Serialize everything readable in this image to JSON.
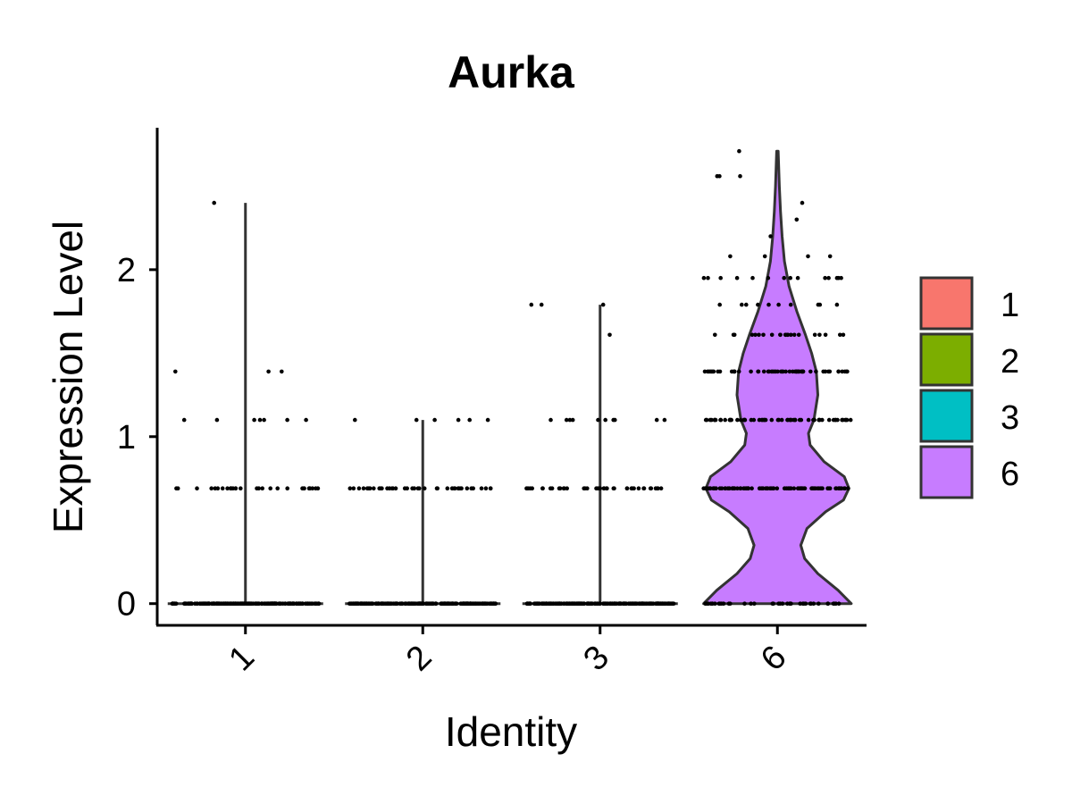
{
  "chart_data": {
    "type": "violin",
    "title": "Aurka",
    "xlabel": "Identity",
    "ylabel": "Expression Level",
    "categories": [
      "1",
      "2",
      "3",
      "6"
    ],
    "ylim": [
      -0.13,
      2.85
    ],
    "yticks": [
      0,
      1,
      2
    ],
    "grid": false,
    "legend": {
      "position": "right",
      "entries": [
        {
          "label": "1",
          "color": "#F8766D"
        },
        {
          "label": "2",
          "color": "#7CAE00"
        },
        {
          "label": "3",
          "color": "#00BFC4"
        },
        {
          "label": "6",
          "color": "#C77CFF"
        }
      ]
    },
    "series": [
      {
        "category": "1",
        "color": "#F8766D",
        "max": 2.4,
        "density": [],
        "points": [
          {
            "y": 0,
            "n": 200
          },
          {
            "y": 0.69,
            "n": 30
          },
          {
            "y": 1.1,
            "n": 7
          },
          {
            "y": 1.39,
            "n": 3
          },
          {
            "y": 2.4,
            "n": 1
          }
        ]
      },
      {
        "category": "2",
        "color": "#7CAE00",
        "max": 1.1,
        "density": [],
        "points": [
          {
            "y": 0,
            "n": 200
          },
          {
            "y": 0.69,
            "n": 40
          },
          {
            "y": 1.1,
            "n": 6
          }
        ]
      },
      {
        "category": "3",
        "color": "#00BFC4",
        "max": 1.79,
        "density": [],
        "points": [
          {
            "y": 0,
            "n": 200
          },
          {
            "y": 0.69,
            "n": 40
          },
          {
            "y": 1.1,
            "n": 10
          },
          {
            "y": 1.61,
            "n": 1
          },
          {
            "y": 1.79,
            "n": 3
          }
        ]
      },
      {
        "category": "6",
        "color": "#C77CFF",
        "max": 2.71,
        "density": [
          [
            0,
            0.95
          ],
          [
            0.08,
            0.78
          ],
          [
            0.18,
            0.52
          ],
          [
            0.27,
            0.35
          ],
          [
            0.35,
            0.3
          ],
          [
            0.45,
            0.38
          ],
          [
            0.55,
            0.62
          ],
          [
            0.62,
            0.85
          ],
          [
            0.69,
            0.92
          ],
          [
            0.76,
            0.86
          ],
          [
            0.85,
            0.6
          ],
          [
            0.95,
            0.42
          ],
          [
            1.02,
            0.4
          ],
          [
            1.1,
            0.47
          ],
          [
            1.25,
            0.52
          ],
          [
            1.39,
            0.5
          ],
          [
            1.5,
            0.44
          ],
          [
            1.61,
            0.36
          ],
          [
            1.75,
            0.25
          ],
          [
            1.9,
            0.15
          ],
          [
            2.05,
            0.09
          ],
          [
            2.2,
            0.06
          ],
          [
            2.35,
            0.04
          ],
          [
            2.5,
            0.025
          ],
          [
            2.71,
            0.01
          ]
        ],
        "points": [
          {
            "y": 0,
            "n": 40
          },
          {
            "y": 0.69,
            "n": 90
          },
          {
            "y": 1.1,
            "n": 60
          },
          {
            "y": 1.39,
            "n": 55
          },
          {
            "y": 1.61,
            "n": 22
          },
          {
            "y": 1.79,
            "n": 10
          },
          {
            "y": 1.95,
            "n": 14
          },
          {
            "y": 2.08,
            "n": 4
          },
          {
            "y": 2.2,
            "n": 1
          },
          {
            "y": 2.3,
            "n": 1
          },
          {
            "y": 2.4,
            "n": 1
          },
          {
            "y": 2.56,
            "n": 3
          },
          {
            "y": 2.71,
            "n": 1
          }
        ]
      }
    ]
  }
}
